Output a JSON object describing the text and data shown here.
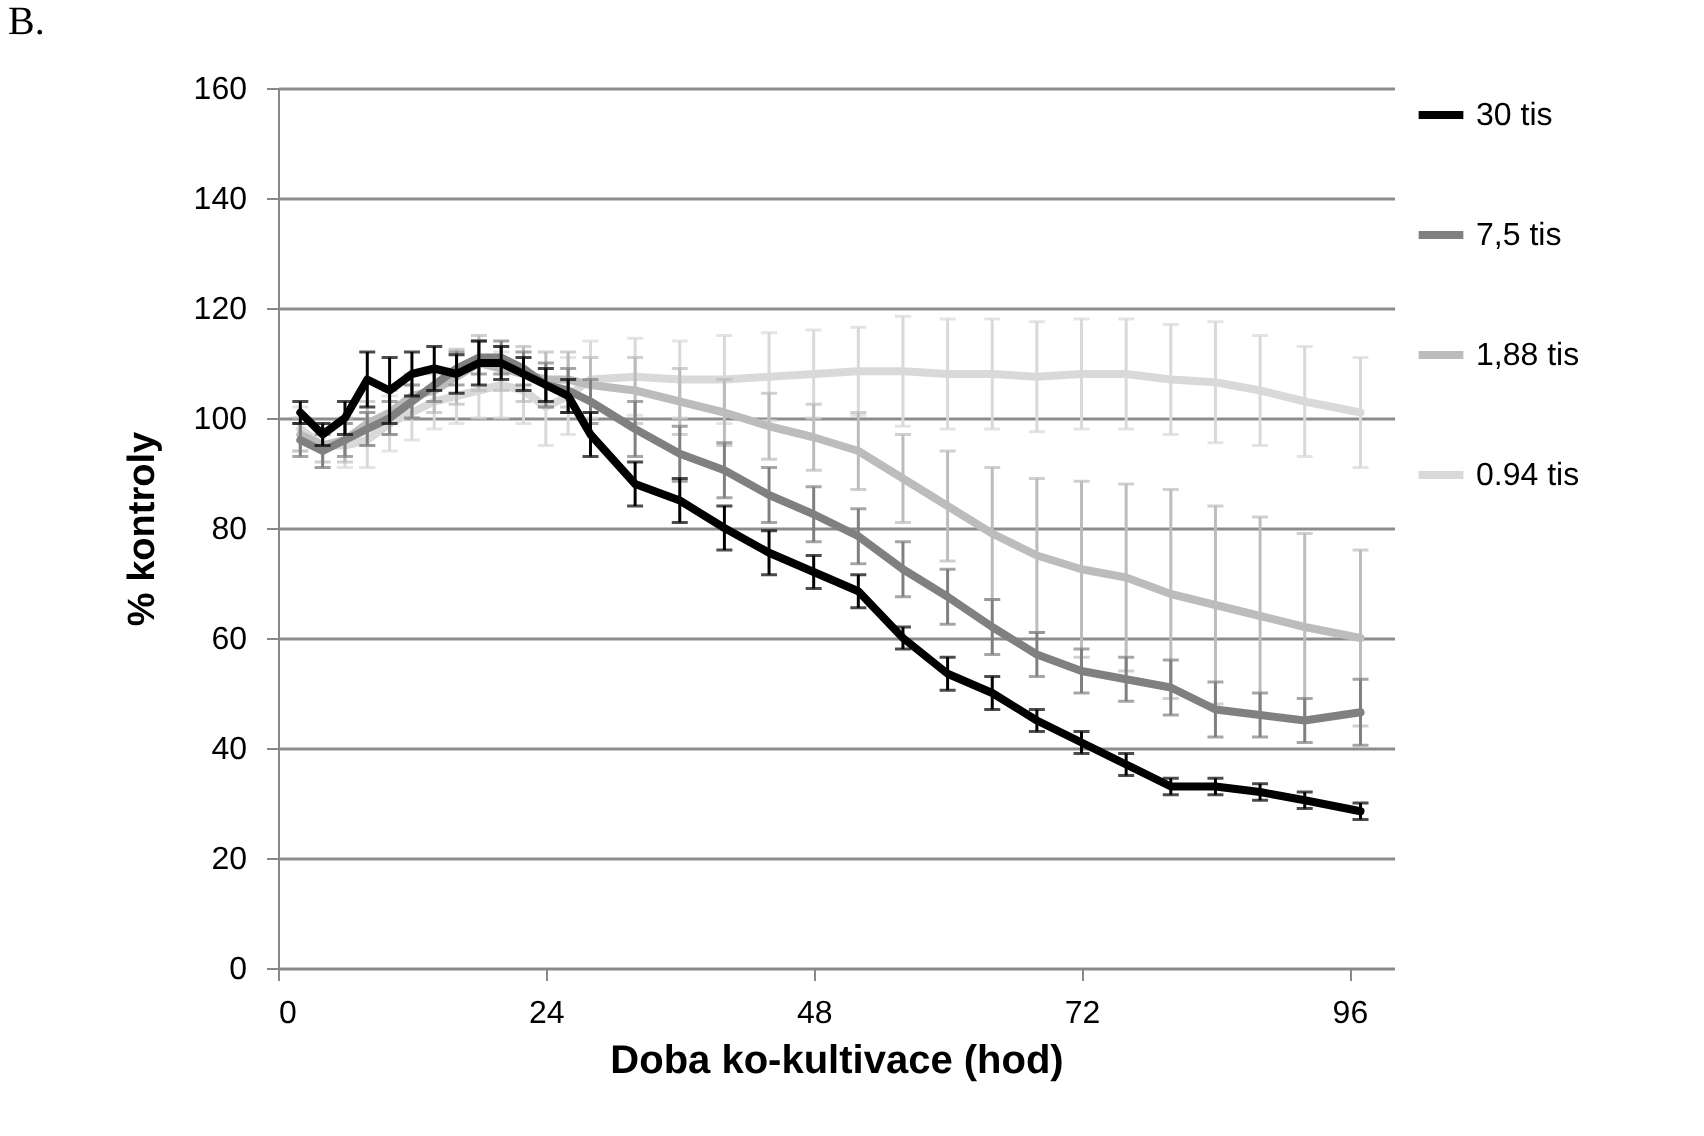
{
  "chart_data": {
    "type": "line",
    "xlabel": "Doba ko-kultivace (hod)",
    "ylabel": "% kontroly",
    "annotations": [
      "B."
    ],
    "x": [
      2,
      4,
      6,
      8,
      10,
      12,
      14,
      16,
      18,
      20,
      22,
      24,
      26,
      28,
      32,
      36,
      40,
      44,
      48,
      52,
      56,
      60,
      64,
      68,
      72,
      76,
      80,
      84,
      88,
      92,
      97
    ],
    "xlim": [
      0,
      100
    ],
    "xticks": [
      0,
      24,
      48,
      72,
      96
    ],
    "ylim": [
      0,
      160
    ],
    "yticks": [
      0,
      20,
      40,
      60,
      80,
      100,
      120,
      140,
      160
    ],
    "grid": "y",
    "legend": "right",
    "line_style": "solid",
    "marker": "none",
    "series": [
      {
        "name": "30 tis",
        "color": "#000000",
        "values": [
          101,
          97,
          100,
          107,
          105,
          108,
          109,
          108,
          110,
          110,
          108,
          106,
          104,
          97,
          88,
          85,
          80,
          75.5,
          72,
          68.5,
          60,
          53.5,
          50,
          45,
          41,
          37,
          33,
          33,
          32,
          30.5,
          28.5
        ],
        "errors": [
          2,
          2,
          3,
          5,
          6,
          4,
          4,
          3.5,
          4,
          3,
          3,
          3,
          3,
          4,
          4,
          4,
          4,
          4,
          3,
          3,
          2,
          3,
          3,
          2,
          2,
          2,
          1.5,
          1.5,
          1.5,
          1.5,
          1.5
        ]
      },
      {
        "name": "7,5 tis",
        "color": "#808080",
        "values": [
          96,
          94,
          96,
          98,
          100,
          103,
          106,
          109,
          111,
          111,
          109,
          106,
          105,
          103,
          98,
          93.5,
          90.5,
          86,
          82.5,
          78.5,
          72.5,
          67.5,
          62,
          57,
          54,
          52.5,
          51,
          47,
          46,
          45,
          46.5
        ],
        "errors": [
          3,
          3,
          3,
          3,
          3,
          3,
          3,
          3,
          3,
          3,
          3,
          4,
          4,
          4,
          5,
          5,
          5,
          5,
          5,
          5,
          5,
          5,
          5,
          4,
          4,
          4,
          5,
          5,
          4,
          4,
          6
        ]
      },
      {
        "name": "1,88 tis",
        "color": "#bcbcbc",
        "values": [
          97,
          95,
          96,
          99,
          101,
          104,
          105,
          107.5,
          110,
          109,
          108,
          107,
          107,
          106,
          105,
          103,
          101,
          98.5,
          96.5,
          94,
          89,
          84,
          79,
          75,
          72.5,
          71,
          68,
          66,
          64,
          62,
          60
        ],
        "errors": [
          3,
          3,
          4,
          4,
          4,
          4,
          4,
          5,
          5,
          4,
          5,
          5,
          5,
          5,
          6,
          6,
          6,
          6,
          6,
          7,
          8,
          10,
          12,
          14,
          16,
          17,
          19,
          18,
          18,
          17,
          16
        ]
      },
      {
        "name": "0.94 tis",
        "color": "#d9d9d9",
        "values": [
          98,
          95,
          95,
          96,
          99,
          101,
          103,
          104,
          105,
          106,
          105,
          102,
          104,
          107,
          107.5,
          107,
          107,
          107.5,
          108,
          108.5,
          108.5,
          108,
          108,
          107.5,
          108,
          108,
          107,
          106.5,
          105,
          103,
          101
        ],
        "errors": [
          4,
          4,
          4,
          5,
          5,
          5,
          5,
          5,
          5,
          6,
          6,
          7,
          7,
          7,
          7,
          7,
          8,
          8,
          8,
          8,
          10,
          10,
          10,
          10,
          10,
          10,
          10,
          11,
          10,
          10,
          10
        ]
      }
    ]
  }
}
